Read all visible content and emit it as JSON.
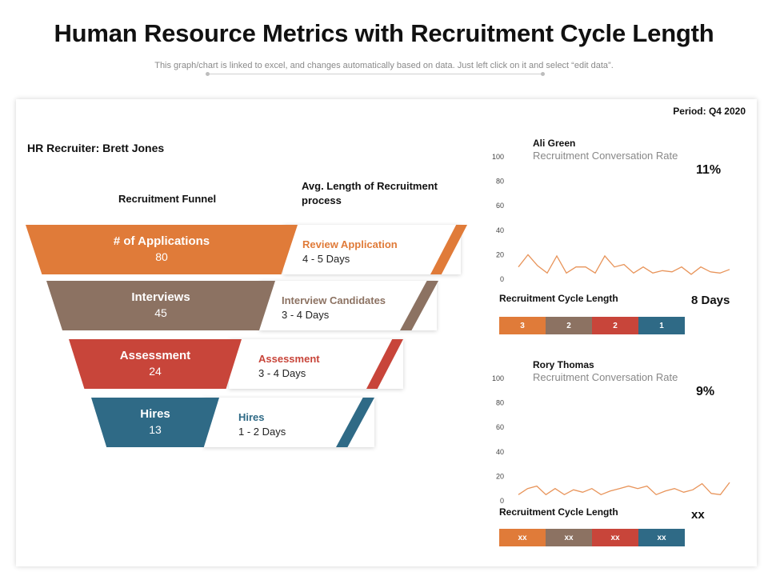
{
  "header": {
    "title": "Human Resource Metrics with Recruitment Cycle Length",
    "subtitle": "This graph/chart is linked to excel, and changes automatically based on data. Just left click on it and select “edit data”."
  },
  "period": "Period: Q4 2020",
  "recruiter": "HR Recruiter: Brett Jones",
  "funnel": {
    "heading": "Recruitment Funnel",
    "avg_heading": "Avg. Length of Recruitment process",
    "stages": [
      {
        "label": "# of Applications",
        "value": "80",
        "step": "Review Application",
        "days": "4 - 5 Days",
        "color": "#E07B39"
      },
      {
        "label": "Interviews",
        "value": "45",
        "step": "Interview Candidates",
        "days": "3 - 4 Days",
        "color": "#8C7262"
      },
      {
        "label": "Assessment",
        "value": "24",
        "step": "Assessment",
        "days": "3 - 4 Days",
        "color": "#C8453A"
      },
      {
        "label": "Hires",
        "value": "13",
        "step": "Hires",
        "days": "1 - 2 Days",
        "color": "#2F6A86"
      }
    ]
  },
  "segment_colors": [
    "#E07B39",
    "#8C7262",
    "#C8453A",
    "#2F6A86"
  ],
  "recruiters": [
    {
      "name": "Ali Green",
      "rate_label": "Recruitment Conversation Rate",
      "rate": "11%",
      "cycle_label": "Recruitment Cycle Length",
      "cycle_days": "8 Days",
      "segments": [
        "3",
        "2",
        "2",
        "1"
      ]
    },
    {
      "name": "Rory Thomas",
      "rate_label": "Recruitment Conversation Rate",
      "rate": "9%",
      "cycle_label": "Recruitment Cycle Length",
      "cycle_days": "xx",
      "segments": [
        "xx",
        "xx",
        "xx",
        "xx"
      ]
    }
  ],
  "chart_data": [
    {
      "type": "line",
      "series": [
        {
          "values": [
            10,
            20,
            11,
            5,
            19,
            5,
            10,
            10,
            5,
            19,
            10,
            12,
            5,
            10,
            5,
            7,
            6,
            10,
            4,
            10,
            6,
            5,
            8
          ]
        }
      ],
      "ylim": [
        0,
        100
      ],
      "yticks": [
        "0",
        "20",
        "40",
        "60",
        "80",
        "100"
      ],
      "line_color": "#E8945A"
    },
    {
      "type": "line",
      "series": [
        {
          "values": [
            5,
            10,
            12,
            5,
            10,
            5,
            9,
            7,
            10,
            5,
            8,
            10,
            12,
            10,
            12,
            5,
            8,
            10,
            7,
            9,
            14,
            6,
            5,
            15
          ]
        }
      ],
      "ylim": [
        0,
        100
      ],
      "yticks": [
        "0",
        "20",
        "40",
        "60",
        "80",
        "100"
      ],
      "line_color": "#E8945A"
    }
  ]
}
